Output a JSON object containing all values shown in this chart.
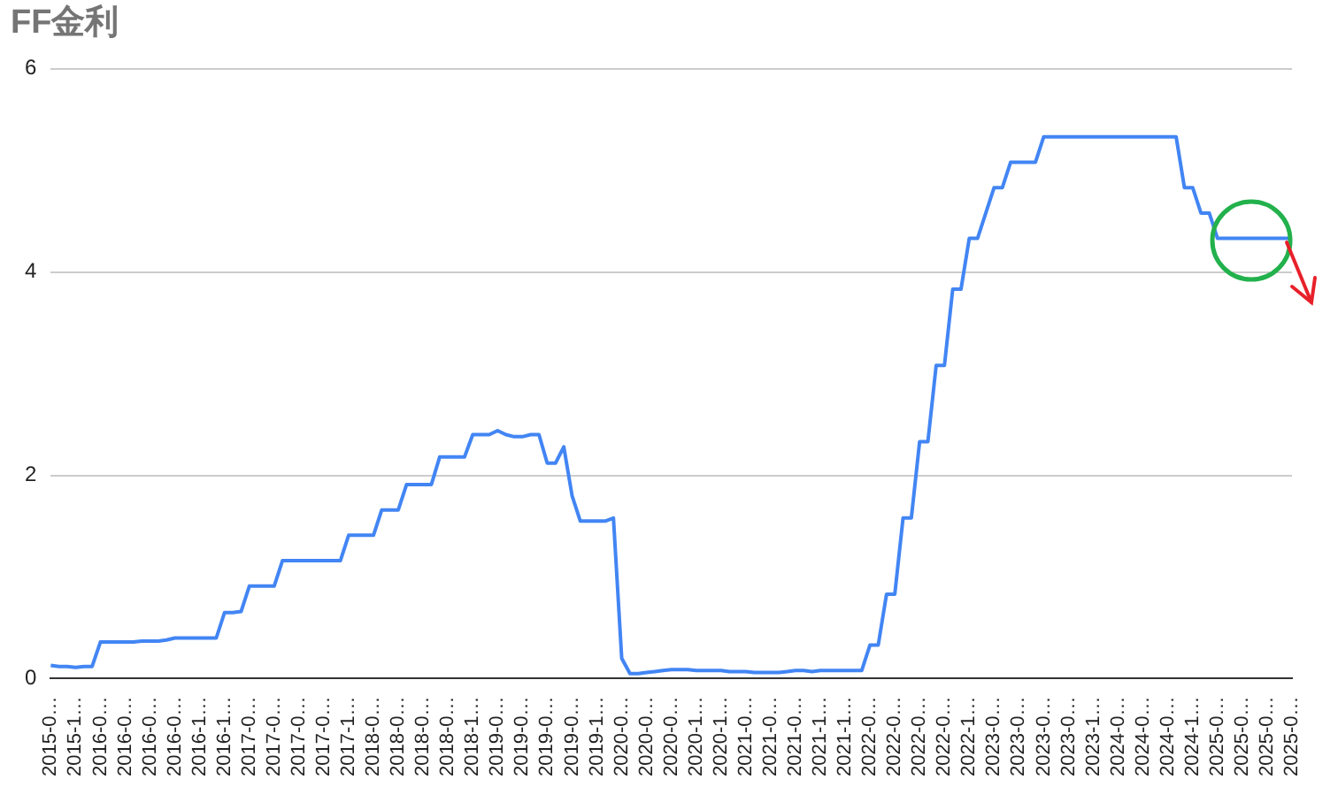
{
  "chart_data": {
    "type": "line",
    "title": "FF金利",
    "categories": [
      "2015-0…",
      null,
      null,
      "2015-1…",
      null,
      null,
      "2016-0…",
      null,
      null,
      "2016-0…",
      null,
      null,
      "2016-0…",
      null,
      null,
      "2016-0…",
      null,
      null,
      "2016-1…",
      null,
      null,
      "2016-1…",
      null,
      null,
      "2017-0…",
      null,
      null,
      "2017-0…",
      null,
      null,
      "2017-0…",
      null,
      null,
      "2017-0…",
      null,
      null,
      "2017-1…",
      null,
      null,
      "2018-0…",
      null,
      null,
      "2018-0…",
      null,
      null,
      "2018-0…",
      null,
      null,
      "2018-0…",
      null,
      null,
      "2018-1…",
      null,
      null,
      "2019-0…",
      null,
      null,
      "2019-0…",
      null,
      null,
      "2019-0…",
      null,
      null,
      "2019-0…",
      null,
      null,
      "2019-1…",
      null,
      null,
      "2020-0…",
      null,
      null,
      "2020-0…",
      null,
      null,
      "2020-0…",
      null,
      null,
      "2020-1…",
      null,
      null,
      "2020-1…",
      null,
      null,
      "2021-0…",
      null,
      null,
      "2021-0…",
      null,
      null,
      "2021-0…",
      null,
      null,
      "2021-1…",
      null,
      null,
      "2021-1…",
      null,
      null,
      "2022-0…",
      null,
      null,
      "2022-0…",
      null,
      null,
      "2022-0…",
      null,
      null,
      "2022-0…",
      null,
      null,
      "2022-1…",
      null,
      null,
      "2023-0…",
      null,
      null,
      "2023-0…",
      null,
      null,
      "2023-0…",
      null,
      null,
      "2023-0…",
      null,
      null,
      "2023-1…",
      null,
      null,
      "2024-0…",
      null,
      null,
      "2024-0…",
      null,
      null,
      "2024-0…",
      null,
      null,
      "2024-1…",
      null,
      null,
      "2025-0…",
      null,
      null,
      "2025-0…",
      null,
      null,
      "2025-0…",
      null,
      null,
      "2025-0…"
    ],
    "series": [
      {
        "color": "#4285f4",
        "values": [
          0.13,
          0.12,
          0.12,
          0.11,
          0.12,
          0.12,
          0.36,
          0.36,
          0.36,
          0.36,
          0.36,
          0.37,
          0.37,
          0.37,
          0.38,
          0.4,
          0.4,
          0.4,
          0.4,
          0.4,
          0.4,
          0.65,
          0.65,
          0.66,
          0.91,
          0.91,
          0.91,
          0.91,
          1.16,
          1.16,
          1.16,
          1.16,
          1.16,
          1.16,
          1.16,
          1.16,
          1.41,
          1.41,
          1.41,
          1.41,
          1.66,
          1.66,
          1.66,
          1.91,
          1.91,
          1.91,
          1.91,
          2.18,
          2.18,
          2.18,
          2.18,
          2.4,
          2.4,
          2.4,
          2.44,
          2.4,
          2.38,
          2.38,
          2.4,
          2.4,
          2.12,
          2.12,
          2.28,
          1.8,
          1.55,
          1.55,
          1.55,
          1.55,
          1.58,
          0.2,
          0.05,
          0.05,
          0.06,
          0.07,
          0.08,
          0.09,
          0.09,
          0.09,
          0.08,
          0.08,
          0.08,
          0.08,
          0.07,
          0.07,
          0.07,
          0.06,
          0.06,
          0.06,
          0.06,
          0.07,
          0.08,
          0.08,
          0.07,
          0.08,
          0.08,
          0.08,
          0.08,
          0.08,
          0.08,
          0.33,
          0.33,
          0.83,
          0.83,
          1.58,
          1.58,
          2.33,
          2.33,
          3.08,
          3.08,
          3.83,
          3.83,
          4.33,
          4.33,
          4.58,
          4.83,
          4.83,
          5.08,
          5.08,
          5.08,
          5.08,
          5.33,
          5.33,
          5.33,
          5.33,
          5.33,
          5.33,
          5.33,
          5.33,
          5.33,
          5.33,
          5.33,
          5.33,
          5.33,
          5.33,
          5.33,
          5.33,
          5.33,
          4.83,
          4.83,
          4.58,
          4.58,
          4.33,
          4.33,
          4.33,
          4.33,
          4.33,
          4.33,
          4.33,
          4.33,
          4.33,
          4.33
        ]
      }
    ],
    "ylim": [
      0,
      6
    ],
    "yticks": [
      0,
      2,
      4,
      6
    ],
    "grid": "y",
    "marker": "none"
  }
}
